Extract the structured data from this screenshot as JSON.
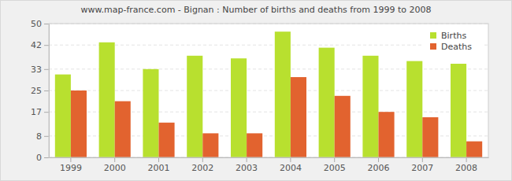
{
  "chart_data": {
    "type": "bar",
    "title": "www.map-france.com - Bignan : Number of births and deaths from 1999 to 2008",
    "categories": [
      "1999",
      "2000",
      "2001",
      "2002",
      "2003",
      "2004",
      "2005",
      "2006",
      "2007",
      "2008"
    ],
    "series": [
      {
        "name": "Births",
        "color": "#b8e02f",
        "values": [
          31,
          43,
          33,
          38,
          37,
          47,
          41,
          38,
          36,
          35
        ]
      },
      {
        "name": "Deaths",
        "color": "#e2632f",
        "values": [
          25,
          21,
          13,
          9,
          9,
          30,
          23,
          17,
          15,
          6
        ]
      }
    ],
    "ylim": [
      0,
      50
    ],
    "yticks": [
      0,
      8,
      17,
      25,
      33,
      42,
      50
    ],
    "grid": true,
    "legend": "top-right"
  }
}
